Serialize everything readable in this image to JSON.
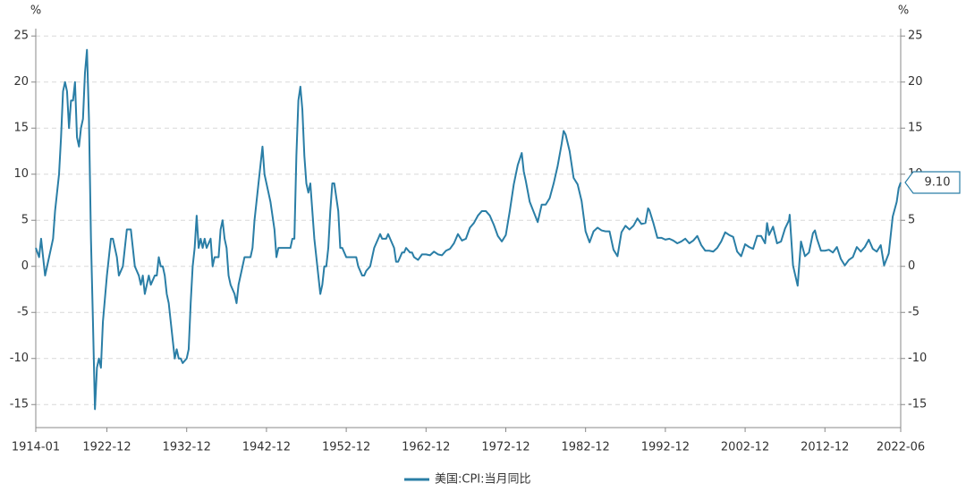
{
  "chart_data": {
    "type": "line",
    "y_label": "%",
    "x": [
      "1914-01",
      "1914-06",
      "1914-09",
      "1914-12",
      "1915-03",
      "1915-06",
      "1915-12",
      "1916-03",
      "1916-06",
      "1916-12",
      "1917-03",
      "1917-06",
      "1917-09",
      "1917-12",
      "1918-03",
      "1918-06",
      "1918-09",
      "1918-12",
      "1919-03",
      "1919-06",
      "1919-09",
      "1919-12",
      "1920-03",
      "1920-06",
      "1920-09",
      "1920-12",
      "1921-03",
      "1921-06",
      "1921-09",
      "1921-12",
      "1922-03",
      "1922-06",
      "1922-12",
      "1923-03",
      "1923-06",
      "1923-09",
      "1923-12",
      "1924-03",
      "1924-06",
      "1924-12",
      "1925-03",
      "1925-06",
      "1925-09",
      "1925-12",
      "1926-03",
      "1926-06",
      "1926-12",
      "1927-03",
      "1927-06",
      "1927-09",
      "1927-12",
      "1928-03",
      "1928-06",
      "1928-12",
      "1929-03",
      "1929-06",
      "1929-09",
      "1929-12",
      "1930-03",
      "1930-06",
      "1930-09",
      "1930-12",
      "1931-03",
      "1931-06",
      "1931-09",
      "1931-12",
      "1932-03",
      "1932-06",
      "1932-12",
      "1933-03",
      "1933-06",
      "1933-09",
      "1933-12",
      "1934-03",
      "1934-06",
      "1934-09",
      "1934-12",
      "1935-03",
      "1935-06",
      "1935-12",
      "1936-03",
      "1936-06",
      "1936-12",
      "1937-03",
      "1937-06",
      "1937-09",
      "1937-12",
      "1938-03",
      "1938-06",
      "1938-12",
      "1939-03",
      "1939-06",
      "1939-12",
      "1940-03",
      "1940-06",
      "1940-12",
      "1941-03",
      "1941-06",
      "1941-12",
      "1942-03",
      "1942-06",
      "1942-09",
      "1942-12",
      "1943-03",
      "1943-06",
      "1943-12",
      "1944-03",
      "1944-06",
      "1944-12",
      "1945-03",
      "1945-06",
      "1945-12",
      "1946-03",
      "1946-06",
      "1946-09",
      "1946-12",
      "1947-03",
      "1947-06",
      "1947-09",
      "1947-12",
      "1948-03",
      "1948-06",
      "1948-09",
      "1948-12",
      "1949-03",
      "1949-06",
      "1949-09",
      "1949-12",
      "1950-03",
      "1950-06",
      "1950-09",
      "1950-12",
      "1951-03",
      "1951-06",
      "1951-12",
      "1952-03",
      "1952-06",
      "1952-12",
      "1953-03",
      "1953-06",
      "1953-12",
      "1954-03",
      "1954-06",
      "1954-12",
      "1955-03",
      "1955-06",
      "1955-12",
      "1956-03",
      "1956-06",
      "1956-12",
      "1957-03",
      "1957-06",
      "1957-12",
      "1958-03",
      "1958-06",
      "1958-12",
      "1959-03",
      "1959-06",
      "1959-12",
      "1960-03",
      "1960-06",
      "1960-12",
      "1961-03",
      "1961-06",
      "1961-12",
      "1962-06",
      "1962-12",
      "1963-06",
      "1963-12",
      "1964-06",
      "1964-12",
      "1965-06",
      "1965-12",
      "1966-06",
      "1966-12",
      "1967-06",
      "1967-12",
      "1968-06",
      "1968-12",
      "1969-06",
      "1969-12",
      "1970-06",
      "1970-12",
      "1971-06",
      "1971-12",
      "1972-06",
      "1972-12",
      "1973-06",
      "1973-12",
      "1974-06",
      "1974-12",
      "1975-03",
      "1975-06",
      "1975-12",
      "1976-06",
      "1976-12",
      "1977-06",
      "1977-12",
      "1978-06",
      "1978-12",
      "1979-06",
      "1979-12",
      "1980-03",
      "1980-06",
      "1980-12",
      "1981-06",
      "1981-12",
      "1982-06",
      "1982-12",
      "1983-06",
      "1983-12",
      "1984-06",
      "1984-12",
      "1985-06",
      "1985-12",
      "1986-06",
      "1986-12",
      "1987-06",
      "1987-12",
      "1988-06",
      "1988-12",
      "1989-06",
      "1989-12",
      "1990-06",
      "1990-10",
      "1990-12",
      "1991-06",
      "1991-12",
      "1992-06",
      "1992-12",
      "1993-06",
      "1993-12",
      "1994-06",
      "1994-12",
      "1995-06",
      "1995-12",
      "1996-06",
      "1996-12",
      "1997-06",
      "1997-12",
      "1998-06",
      "1998-12",
      "1999-06",
      "1999-12",
      "2000-06",
      "2000-12",
      "2001-06",
      "2001-12",
      "2002-06",
      "2002-12",
      "2003-06",
      "2003-12",
      "2004-06",
      "2004-12",
      "2005-06",
      "2005-09",
      "2005-12",
      "2006-06",
      "2006-12",
      "2007-06",
      "2007-12",
      "2008-06",
      "2008-07",
      "2008-12",
      "2009-07",
      "2009-12",
      "2010-06",
      "2010-12",
      "2011-06",
      "2011-09",
      "2011-12",
      "2012-06",
      "2012-12",
      "2013-06",
      "2013-12",
      "2014-06",
      "2014-12",
      "2015-06",
      "2015-12",
      "2016-06",
      "2016-12",
      "2017-06",
      "2017-12",
      "2018-06",
      "2018-12",
      "2019-06",
      "2019-12",
      "2020-05",
      "2020-12",
      "2021-06",
      "2021-12",
      "2022-03",
      "2022-06"
    ],
    "series": [
      {
        "name": "美国:CPI:当月同比",
        "color": "#2a7ea6",
        "values": [
          2,
          1,
          3,
          1,
          -1,
          0,
          2,
          3,
          6,
          10,
          14,
          19,
          20,
          19,
          15,
          18,
          18,
          20,
          14,
          13,
          15,
          16,
          21,
          23.5,
          16,
          3,
          -6,
          -15.5,
          -11,
          -10,
          -11,
          -6,
          -1,
          1,
          3,
          3,
          2,
          1,
          -1,
          0,
          2,
          4,
          4,
          4,
          2,
          0,
          -1,
          -2,
          -1,
          -3,
          -2,
          -1,
          -2,
          -1,
          -1,
          1,
          0,
          0,
          -1,
          -3,
          -4,
          -6,
          -8,
          -10,
          -9,
          -10,
          -10,
          -10.5,
          -10,
          -9,
          -4,
          0,
          2,
          5.5,
          2,
          3,
          2,
          3,
          2,
          3,
          0,
          1,
          1,
          4,
          5,
          3,
          2,
          -1,
          -2,
          -3,
          -4,
          -2,
          0,
          1,
          1,
          1,
          2,
          5,
          9,
          11,
          13,
          10,
          9,
          8,
          7,
          4,
          1,
          2,
          2,
          2,
          2,
          2,
          3,
          3,
          12,
          18,
          19.5,
          17,
          12,
          9,
          8,
          9,
          6,
          3,
          1,
          -1,
          -3,
          -2,
          0,
          0,
          2,
          6,
          9,
          9,
          6,
          2,
          2,
          1,
          1,
          1,
          1,
          1,
          0,
          -1,
          -1,
          -0.5,
          0,
          1,
          2,
          3,
          3.5,
          3,
          3,
          3.5,
          3,
          2,
          0.5,
          0.5,
          1.5,
          1.5,
          2,
          1.5,
          1.5,
          1,
          0.7,
          1.3,
          1.3,
          1.2,
          1.6,
          1.3,
          1.2,
          1.7,
          1.9,
          2.5,
          3.5,
          2.8,
          3,
          4.2,
          4.7,
          5.5,
          6,
          6,
          5.5,
          4.5,
          3.3,
          2.7,
          3.4,
          6,
          8.9,
          11,
          12.3,
          10.3,
          9.3,
          7,
          5.9,
          4.8,
          6.7,
          6.7,
          7.4,
          9,
          10.9,
          13.3,
          14.7,
          14.3,
          12.5,
          9.6,
          8.9,
          7.1,
          3.8,
          2.6,
          3.8,
          4.2,
          3.9,
          3.8,
          3.8,
          1.8,
          1.1,
          3.7,
          4.4,
          4,
          4.4,
          5.2,
          4.6,
          4.7,
          6.3,
          6.1,
          4.7,
          3.1,
          3.1,
          2.9,
          3,
          2.8,
          2.5,
          2.7,
          3,
          2.5,
          2.8,
          3.3,
          2.3,
          1.7,
          1.7,
          1.6,
          2,
          2.7,
          3.7,
          3.4,
          3.2,
          1.6,
          1.1,
          2.4,
          2.1,
          1.9,
          3.3,
          3.3,
          2.5,
          4.7,
          3.4,
          4.3,
          2.5,
          2.7,
          4.1,
          5,
          5.6,
          0.1,
          -2.1,
          2.7,
          1.1,
          1.5,
          3.6,
          3.9,
          3,
          1.7,
          1.7,
          1.8,
          1.5,
          2.1,
          0.8,
          0.1,
          0.7,
          1,
          2.1,
          1.6,
          2.1,
          2.9,
          1.9,
          1.6,
          2.3,
          0.1,
          1.4,
          5.4,
          7,
          8.5,
          9.1
        ]
      }
    ],
    "end_label": {
      "value": 9.1,
      "label": "9.10"
    },
    "xlim": [
      "1914-01",
      "2022-06"
    ],
    "xticks": [
      "1914-01",
      "1922-12",
      "1932-12",
      "1942-12",
      "1952-12",
      "1962-12",
      "1972-12",
      "1982-12",
      "1992-12",
      "2002-12",
      "2012-12",
      "2022-06"
    ],
    "ylim": [
      -17.5,
      25.8
    ],
    "yticks": [
      25,
      20,
      15,
      10,
      5,
      0,
      -5,
      -10,
      -15
    ],
    "grid": true,
    "right_axis_mirror": true,
    "legend": "bottom"
  }
}
